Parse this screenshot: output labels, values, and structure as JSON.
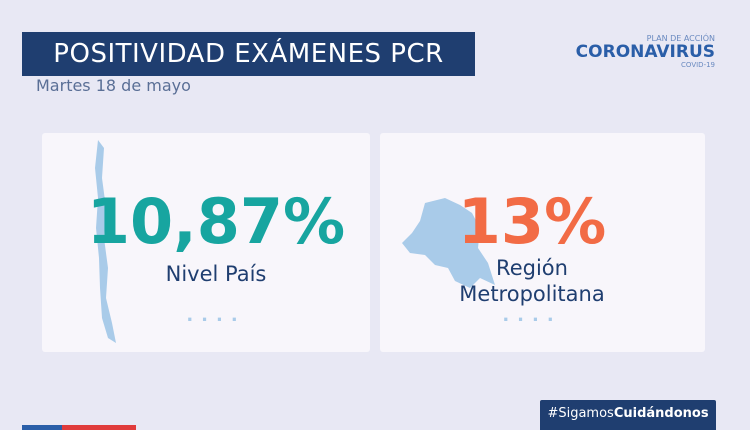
{
  "header": {
    "title": "POSITIVIDAD EXÁMENES PCR",
    "date": "Martes 18 de mayo"
  },
  "logo": {
    "top": "PLAN DE ACCIÓN",
    "main": "CORONAVIRUS",
    "bottom": "COVID-19"
  },
  "cards": [
    {
      "value": "10,87%",
      "label_lines": [
        "Nivel País"
      ]
    },
    {
      "value": "13%",
      "label_lines": [
        "Región",
        "Metropolitana"
      ]
    }
  ],
  "hashtag": {
    "prefix": "#Sigamos",
    "emphasis": "Cuidándonos"
  }
}
